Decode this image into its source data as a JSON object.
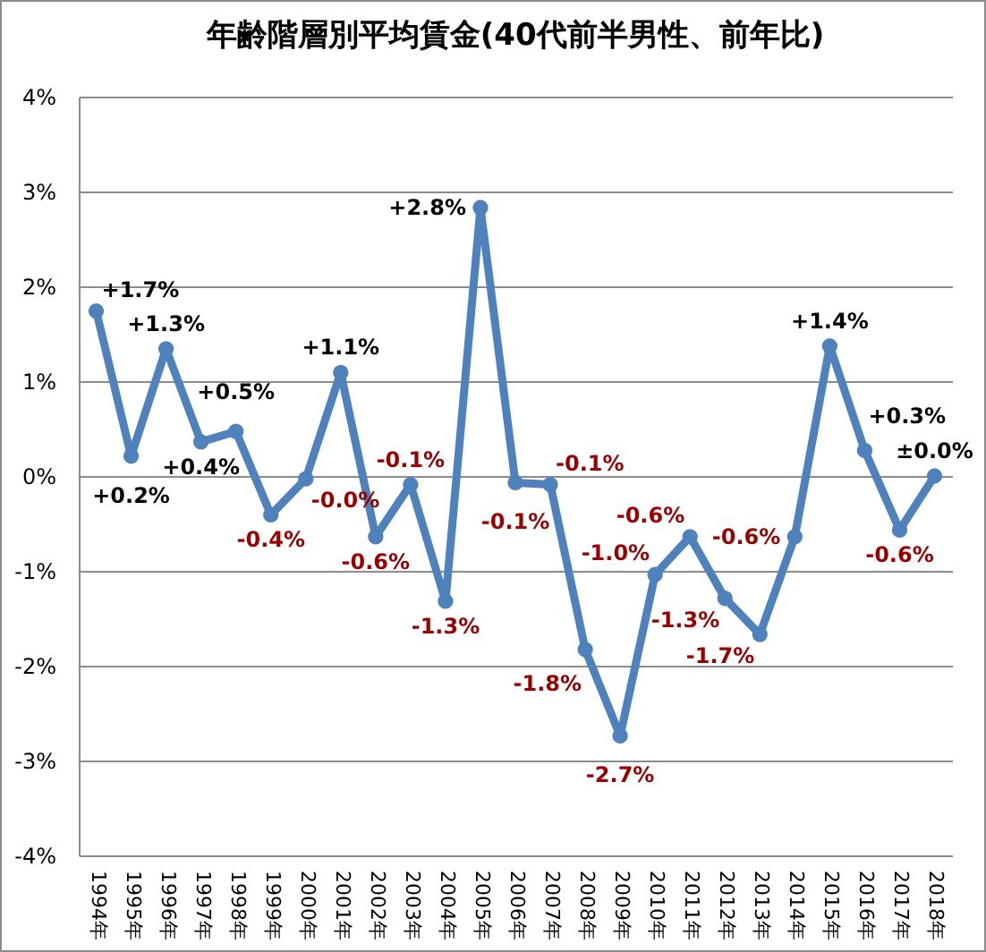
{
  "chart_data": {
    "type": "line",
    "title": "年齢階層別平均賃金(40代前半男性、前年比)",
    "categories": [
      "1994年",
      "1995年",
      "1996年",
      "1997年",
      "1998年",
      "1999年",
      "2000年",
      "2001年",
      "2002年",
      "2003年",
      "2004年",
      "2005年",
      "2006年",
      "2007年",
      "2008年",
      "2009年",
      "2010年",
      "2011年",
      "2012年",
      "2013年",
      "2014年",
      "2015年",
      "2016年",
      "2017年",
      "2018年"
    ],
    "values": [
      1.74,
      0.21,
      1.34,
      0.36,
      0.47,
      -0.41,
      -0.03,
      1.09,
      -0.64,
      -0.09,
      -1.32,
      2.83,
      -0.07,
      -0.09,
      -1.83,
      -2.74,
      -1.04,
      -0.64,
      -1.29,
      -1.67,
      -0.64,
      1.37,
      0.27,
      -0.57,
      0.0
    ],
    "value_labels": [
      "+1.7%",
      "+0.2%",
      "+1.3%",
      "+0.4%",
      "+0.5%",
      "-0.4%",
      "-0.0%",
      "+1.1%",
      "-0.6%",
      "-0.1%",
      "-1.3%",
      "+2.8%",
      "-0.1%",
      "-0.1%",
      "-1.8%",
      "-2.7%",
      "-1.0%",
      "-0.6%",
      "-1.3%",
      "-1.7%",
      "-0.6%",
      "+1.4%",
      "+0.3%",
      "-0.6%",
      "±0.0%"
    ],
    "color": "#4f81bd",
    "ylim": [
      -4,
      4
    ],
    "yticks": [
      {
        "value": -4,
        "label": "-4%"
      },
      {
        "value": -3,
        "label": "-3%"
      },
      {
        "value": -2,
        "label": "-2%"
      },
      {
        "value": -1,
        "label": "-1%"
      },
      {
        "value": 0,
        "label": "0%"
      },
      {
        "value": 1,
        "label": "1%"
      },
      {
        "value": 2,
        "label": "2%"
      },
      {
        "value": 3,
        "label": "3%"
      },
      {
        "value": 4,
        "label": "4%"
      }
    ],
    "grid": "y",
    "marker": "circle",
    "line_style": "solid"
  }
}
